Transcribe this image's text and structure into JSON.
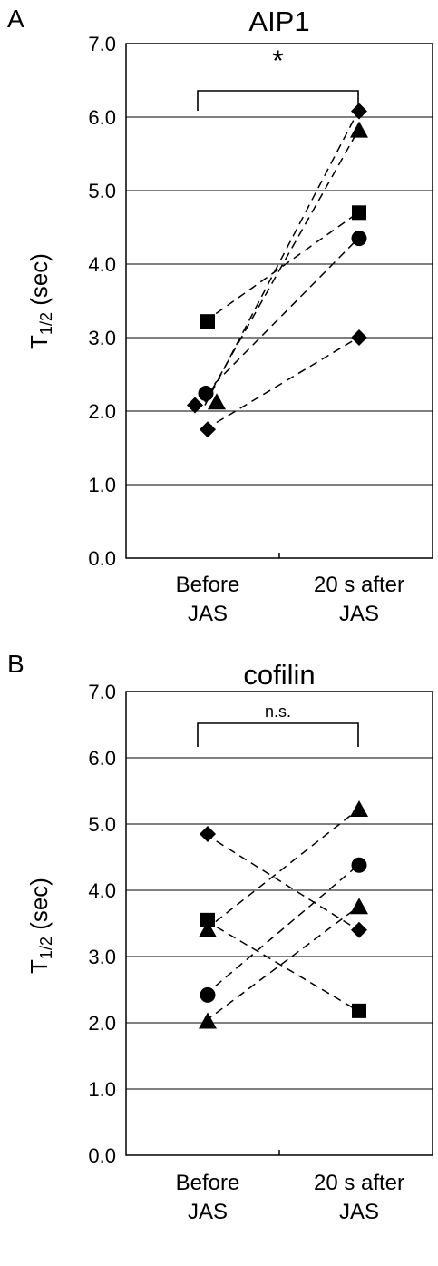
{
  "chart_data": [
    {
      "panel_label": "A",
      "title": "AIP1",
      "type": "scatter",
      "ylabel": "T1/2 (sec)",
      "ylim": [
        0,
        7
      ],
      "yticks": [
        "0.0",
        "1.0",
        "2.0",
        "3.0",
        "4.0",
        "5.0",
        "6.0",
        "7.0"
      ],
      "categories": [
        [
          "Before",
          "JAS"
        ],
        [
          "20 s after",
          "JAS"
        ]
      ],
      "grid": true,
      "significance": "*",
      "series": [
        {
          "marker": "diamond",
          "values": [
            2.08,
            6.08
          ]
        },
        {
          "marker": "triangle",
          "values": [
            2.12,
            5.82
          ]
        },
        {
          "marker": "square",
          "values": [
            3.22,
            4.7
          ]
        },
        {
          "marker": "circle",
          "values": [
            2.24,
            4.35
          ]
        },
        {
          "marker": "diamond",
          "values": [
            1.75,
            3.0
          ]
        }
      ]
    },
    {
      "panel_label": "B",
      "title": "cofilin",
      "type": "scatter",
      "ylabel": "T1/2 (sec)",
      "ylim": [
        0,
        7
      ],
      "yticks": [
        "0.0",
        "1.0",
        "2.0",
        "3.0",
        "4.0",
        "5.0",
        "6.0",
        "7.0"
      ],
      "categories": [
        [
          "Before",
          "JAS"
        ],
        [
          "20 s after",
          "JAS"
        ]
      ],
      "grid": true,
      "significance": "n.s.",
      "series": [
        {
          "marker": "diamond",
          "values": [
            4.85,
            3.4
          ]
        },
        {
          "marker": "square",
          "values": [
            3.55,
            2.18
          ]
        },
        {
          "marker": "triangle",
          "values": [
            3.4,
            5.22
          ]
        },
        {
          "marker": "circle",
          "values": [
            2.42,
            4.38
          ]
        },
        {
          "marker": "triangle",
          "values": [
            2.02,
            3.75
          ]
        }
      ]
    }
  ]
}
